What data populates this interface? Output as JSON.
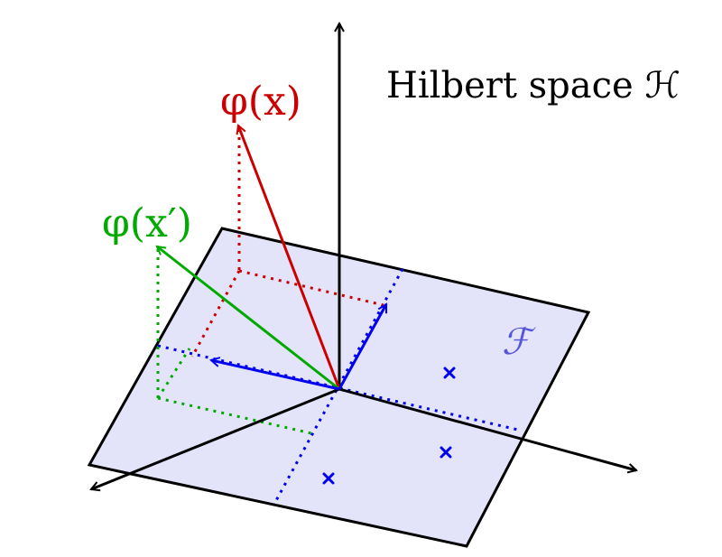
{
  "title": "Hilbert space ℋ",
  "labels": {
    "phi_x": "φ(x)",
    "phi_x_prime": "φ(x′)",
    "subspace": "ℱ"
  },
  "colors": {
    "axis": "#000000",
    "plane_fill": "#e3e4fa",
    "plane_stroke": "#000000",
    "phi_x": "#cc0000",
    "phi_x_prime": "#00aa00",
    "subspace_vectors": "#0000ee",
    "subspace_label": "#5555dd"
  }
}
